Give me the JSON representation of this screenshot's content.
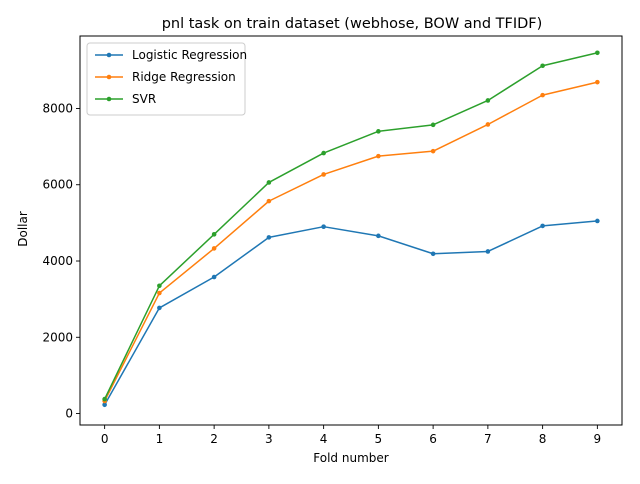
{
  "chart_data": {
    "type": "line",
    "title": "pnl task on train dataset (webhose, BOW and TFIDF)",
    "xlabel": "Fold number",
    "ylabel": "Dollar",
    "x": [
      0,
      1,
      2,
      3,
      4,
      5,
      6,
      7,
      8,
      9
    ],
    "x_ticks": [
      "0",
      "1",
      "2",
      "3",
      "4",
      "5",
      "6",
      "7",
      "8",
      "9"
    ],
    "y_ticks": [
      "0",
      "2000",
      "4000",
      "6000",
      "8000"
    ],
    "xlim": [
      -0.45,
      9.45
    ],
    "ylim": [
      -300,
      9900
    ],
    "grid": false,
    "legend_location": "upper-left",
    "series": [
      {
        "name": "Logistic Regression",
        "color": "#1f77b4",
        "values": [
          230,
          2770,
          3580,
          4620,
          4900,
          4660,
          4190,
          4250,
          4920,
          5050
        ]
      },
      {
        "name": "Ridge Regression",
        "color": "#ff7f0e",
        "values": [
          330,
          3160,
          4330,
          5570,
          6270,
          6750,
          6880,
          7580,
          8350,
          8690
        ]
      },
      {
        "name": "SVR",
        "color": "#2ca02c",
        "values": [
          380,
          3350,
          4700,
          6060,
          6830,
          7400,
          7570,
          8210,
          9120,
          9460
        ]
      }
    ]
  }
}
